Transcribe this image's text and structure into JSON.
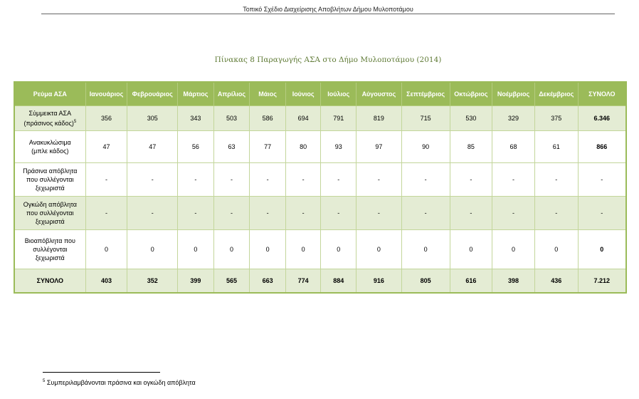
{
  "page_header": "Τοπικό Σχέδιο Διαχείρισης Αποβλήτων Δήμου Μυλοποτάμου",
  "table_title": "Πίνακας 8 Παραγωγής ΑΣΑ στο Δήμο Μυλοποτάμου (2014)",
  "columns": [
    "Ρεύμα ΑΣΑ",
    "Ιανουάριος",
    "Φεβρουάριος",
    "Μάρτιος",
    "Απρίλιος",
    "Μάιος",
    "Ιούνιος",
    "Ιούλιος",
    "Αύγουστος",
    "Σεπτέμβριος",
    "Οκτώβριος",
    "Νοέμβριος",
    "Δεκέμβριος",
    "ΣΥΝΟΛΟ"
  ],
  "rows": [
    {
      "label_line1": "Σύμμεικτα ΑΣΑ",
      "label_line2": "(πράσινος κάδος)",
      "label_line3": "",
      "footnote_mark": "5",
      "values": [
        "356",
        "305",
        "343",
        "503",
        "586",
        "694",
        "791",
        "819",
        "715",
        "530",
        "329",
        "375",
        "6.346"
      ]
    },
    {
      "label_line1": "Ανακυκλώσιμα",
      "label_line2": "(μπλε κάδος)",
      "label_line3": "",
      "footnote_mark": "",
      "values": [
        "47",
        "47",
        "56",
        "63",
        "77",
        "80",
        "93",
        "97",
        "90",
        "85",
        "68",
        "61",
        "866"
      ]
    },
    {
      "label_line1": "Πράσινα απόβλητα",
      "label_line2": "που συλλέγονται",
      "label_line3": "ξεχωριστά",
      "footnote_mark": "",
      "values": [
        "-",
        "-",
        "-",
        "-",
        "-",
        "-",
        "-",
        "-",
        "-",
        "-",
        "-",
        "-",
        "-"
      ]
    },
    {
      "label_line1": "Ογκώδη απόβλητα",
      "label_line2": "που συλλέγονται",
      "label_line3": "ξεχωριστά",
      "footnote_mark": "",
      "values": [
        "-",
        "-",
        "-",
        "-",
        "-",
        "-",
        "-",
        "-",
        "-",
        "-",
        "-",
        "-",
        "-"
      ]
    },
    {
      "label_line1": "Βιοαπόβλητα που",
      "label_line2": "συλλέγονται",
      "label_line3": "ξεχωριστά",
      "footnote_mark": "",
      "values": [
        "0",
        "0",
        "0",
        "0",
        "0",
        "0",
        "0",
        "0",
        "0",
        "0",
        "0",
        "0",
        "0"
      ]
    }
  ],
  "total_row": {
    "label": "ΣΥΝΟΛΟ",
    "values": [
      "403",
      "352",
      "399",
      "565",
      "663",
      "774",
      "884",
      "916",
      "805",
      "616",
      "398",
      "436",
      "7.212"
    ]
  },
  "footnote": {
    "mark": "5",
    "text": "Συμπεριλαμβάνονται πράσινα και ογκώδη απόβλητα"
  },
  "colors": {
    "header_bg": "#9bbb59",
    "shade_bg": "#e4ecd4",
    "title_color": "#5f7a35"
  }
}
